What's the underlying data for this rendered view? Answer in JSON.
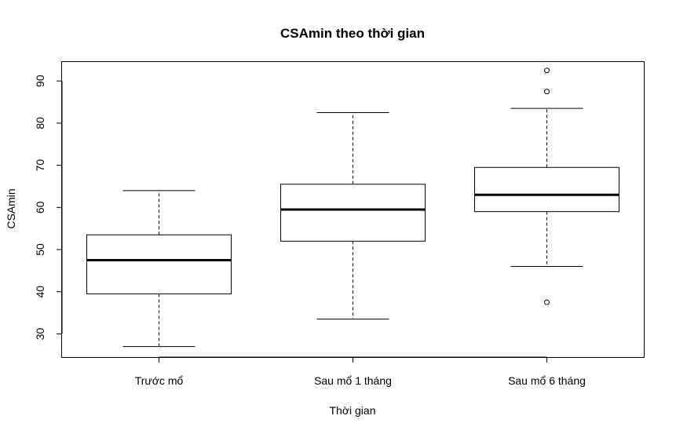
{
  "chart_data": {
    "type": "boxplot",
    "title": "CSAmin theo thời gian",
    "xlabel": "Thời gian",
    "ylabel": "CSAmin",
    "ylim": [
      24.5,
      94.5
    ],
    "yticks": [
      30,
      40,
      50,
      60,
      70,
      80,
      90
    ],
    "categories": [
      "Trước mổ",
      "Sau mổ 1 tháng",
      "Sau  mổ 6 tháng"
    ],
    "boxes": [
      {
        "category": "Trước mổ",
        "whisker_low": 27,
        "q1": 39.5,
        "median": 47.5,
        "q3": 53.5,
        "whisker_high": 64,
        "outliers": []
      },
      {
        "category": "Sau mổ 1 tháng",
        "whisker_low": 33.5,
        "q1": 52,
        "median": 59.5,
        "q3": 65.5,
        "whisker_high": 82.5,
        "outliers": []
      },
      {
        "category": "Sau  mổ 6 tháng",
        "whisker_low": 46,
        "q1": 59,
        "median": 63,
        "q3": 69.5,
        "whisker_high": 83.5,
        "outliers": [
          37.5,
          87.5,
          92.5
        ]
      }
    ],
    "grid": false,
    "legend": "none"
  }
}
